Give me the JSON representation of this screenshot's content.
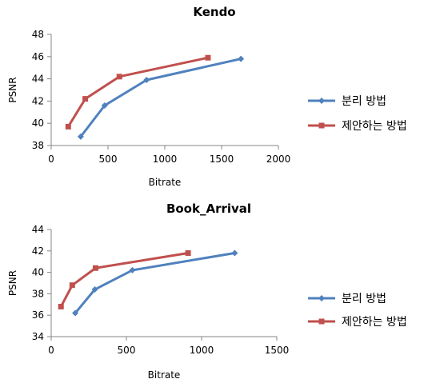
{
  "chart_data": [
    {
      "type": "line",
      "title": "Kendo",
      "xlabel": "Bitrate",
      "ylabel": "PSNR",
      "xlim": [
        0,
        2000
      ],
      "ylim": [
        38,
        48
      ],
      "xticks": [
        0,
        500,
        1000,
        1500,
        2000
      ],
      "yticks": [
        38,
        40,
        42,
        44,
        46,
        48
      ],
      "grid": false,
      "legend_position": "right",
      "series": [
        {
          "name": "분리 방법",
          "color": "#4f81bd",
          "marker": "diamond",
          "x": [
            260,
            470,
            840,
            1670
          ],
          "y": [
            38.8,
            41.6,
            43.9,
            45.8
          ]
        },
        {
          "name": "제안하는 방법",
          "color": "#c0504d",
          "marker": "square",
          "x": [
            150,
            300,
            600,
            1380
          ],
          "y": [
            39.7,
            42.2,
            44.2,
            45.9
          ]
        }
      ]
    },
    {
      "type": "line",
      "title": "Book_Arrival",
      "xlabel": "Bitrate",
      "ylabel": "PSNR",
      "xlim": [
        0,
        1500
      ],
      "ylim": [
        34,
        44
      ],
      "xticks": [
        0,
        500,
        1000,
        1500
      ],
      "yticks": [
        34,
        36,
        38,
        40,
        42,
        44
      ],
      "grid": false,
      "legend_position": "right",
      "series": [
        {
          "name": "분리 방법",
          "color": "#4f81bd",
          "marker": "diamond",
          "x": [
            160,
            290,
            540,
            1220
          ],
          "y": [
            36.2,
            38.4,
            40.2,
            41.8
          ]
        },
        {
          "name": "제안하는 방법",
          "color": "#c0504d",
          "marker": "square",
          "x": [
            65,
            140,
            295,
            910
          ],
          "y": [
            36.8,
            38.8,
            40.4,
            41.8
          ]
        }
      ]
    }
  ]
}
